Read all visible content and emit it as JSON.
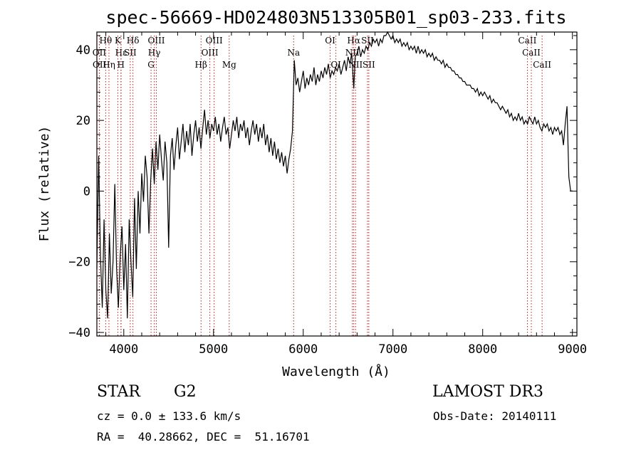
{
  "chart_data": {
    "type": "line",
    "title": "spec-56669-HD024803N513305B01_sp03-233.fits",
    "xlabel": "Wavelength (Å)",
    "ylabel": "Flux (relative)",
    "xlim": [
      3700,
      9050
    ],
    "ylim": [
      -41,
      45
    ],
    "xticks": [
      4000,
      5000,
      6000,
      7000,
      8000,
      9000
    ],
    "yticks": [
      -40,
      -20,
      0,
      20,
      40
    ],
    "series": [
      {
        "name": "spectrum",
        "points": [
          [
            3700,
            -22
          ],
          [
            3720,
            10
          ],
          [
            3740,
            -18
          ],
          [
            3760,
            -33
          ],
          [
            3780,
            -8
          ],
          [
            3800,
            -28
          ],
          [
            3820,
            -36
          ],
          [
            3840,
            -12
          ],
          [
            3860,
            -29
          ],
          [
            3880,
            -20
          ],
          [
            3900,
            2
          ],
          [
            3920,
            -22
          ],
          [
            3940,
            -33
          ],
          [
            3960,
            -18
          ],
          [
            3980,
            -10
          ],
          [
            4000,
            -28
          ],
          [
            4020,
            -15
          ],
          [
            4040,
            -36
          ],
          [
            4060,
            -8
          ],
          [
            4080,
            -20
          ],
          [
            4100,
            -30
          ],
          [
            4120,
            -2
          ],
          [
            4140,
            -22
          ],
          [
            4160,
            0
          ],
          [
            4180,
            -12
          ],
          [
            4200,
            5
          ],
          [
            4220,
            -3
          ],
          [
            4240,
            10
          ],
          [
            4260,
            4
          ],
          [
            4280,
            -12
          ],
          [
            4300,
            3
          ],
          [
            4320,
            12
          ],
          [
            4340,
            2
          ],
          [
            4360,
            14
          ],
          [
            4380,
            6
          ],
          [
            4400,
            16
          ],
          [
            4420,
            9
          ],
          [
            4440,
            3
          ],
          [
            4460,
            14
          ],
          [
            4480,
            8
          ],
          [
            4500,
            -16
          ],
          [
            4520,
            10
          ],
          [
            4540,
            15
          ],
          [
            4560,
            6
          ],
          [
            4580,
            13
          ],
          [
            4600,
            18
          ],
          [
            4620,
            9
          ],
          [
            4640,
            14
          ],
          [
            4660,
            19
          ],
          [
            4680,
            11
          ],
          [
            4700,
            17
          ],
          [
            4720,
            13
          ],
          [
            4740,
            19
          ],
          [
            4760,
            10
          ],
          [
            4780,
            16
          ],
          [
            4800,
            20
          ],
          [
            4820,
            14
          ],
          [
            4840,
            18
          ],
          [
            4860,
            12
          ],
          [
            4880,
            18
          ],
          [
            4900,
            23
          ],
          [
            4920,
            16
          ],
          [
            4940,
            20
          ],
          [
            4960,
            15
          ],
          [
            4980,
            19
          ],
          [
            5000,
            17
          ],
          [
            5020,
            21
          ],
          [
            5040,
            16
          ],
          [
            5060,
            19
          ],
          [
            5080,
            14
          ],
          [
            5100,
            18
          ],
          [
            5120,
            21
          ],
          [
            5140,
            16
          ],
          [
            5160,
            18
          ],
          [
            5180,
            12
          ],
          [
            5200,
            16
          ],
          [
            5220,
            20
          ],
          [
            5240,
            17
          ],
          [
            5260,
            21
          ],
          [
            5280,
            15
          ],
          [
            5300,
            19
          ],
          [
            5320,
            17
          ],
          [
            5340,
            20
          ],
          [
            5360,
            15
          ],
          [
            5380,
            18
          ],
          [
            5400,
            13
          ],
          [
            5420,
            17
          ],
          [
            5440,
            20
          ],
          [
            5460,
            16
          ],
          [
            5480,
            19
          ],
          [
            5500,
            14
          ],
          [
            5520,
            18
          ],
          [
            5540,
            15
          ],
          [
            5560,
            19
          ],
          [
            5580,
            13
          ],
          [
            5600,
            16
          ],
          [
            5620,
            11
          ],
          [
            5640,
            15
          ],
          [
            5660,
            10
          ],
          [
            5680,
            14
          ],
          [
            5700,
            9
          ],
          [
            5720,
            12
          ],
          [
            5740,
            8
          ],
          [
            5760,
            11
          ],
          [
            5780,
            7
          ],
          [
            5800,
            10
          ],
          [
            5820,
            5
          ],
          [
            5840,
            9
          ],
          [
            5860,
            12
          ],
          [
            5880,
            17
          ],
          [
            5890,
            27
          ],
          [
            5900,
            37
          ],
          [
            5920,
            30
          ],
          [
            5940,
            32
          ],
          [
            5960,
            28
          ],
          [
            5980,
            31
          ],
          [
            6000,
            34
          ],
          [
            6020,
            29
          ],
          [
            6040,
            32
          ],
          [
            6060,
            30
          ],
          [
            6080,
            33
          ],
          [
            6100,
            31
          ],
          [
            6120,
            35
          ],
          [
            6140,
            30
          ],
          [
            6160,
            33
          ],
          [
            6180,
            31
          ],
          [
            6200,
            34
          ],
          [
            6220,
            32
          ],
          [
            6240,
            35
          ],
          [
            6260,
            33
          ],
          [
            6280,
            36
          ],
          [
            6300,
            32
          ],
          [
            6320,
            34
          ],
          [
            6340,
            33
          ],
          [
            6360,
            35
          ],
          [
            6380,
            34
          ],
          [
            6400,
            36
          ],
          [
            6420,
            33
          ],
          [
            6440,
            35
          ],
          [
            6460,
            37
          ],
          [
            6480,
            34
          ],
          [
            6500,
            38
          ],
          [
            6520,
            36
          ],
          [
            6540,
            39
          ],
          [
            6563,
            29
          ],
          [
            6580,
            38
          ],
          [
            6600,
            39
          ],
          [
            6620,
            41
          ],
          [
            6640,
            38
          ],
          [
            6660,
            40
          ],
          [
            6680,
            39
          ],
          [
            6700,
            41
          ],
          [
            6720,
            40
          ],
          [
            6740,
            42
          ],
          [
            6760,
            41
          ],
          [
            6780,
            43
          ],
          [
            6800,
            42
          ],
          [
            6820,
            43
          ],
          [
            6840,
            41
          ],
          [
            6860,
            43
          ],
          [
            6880,
            42
          ],
          [
            6900,
            44
          ],
          [
            6920,
            44
          ],
          [
            6940,
            45
          ],
          [
            6960,
            44
          ],
          [
            6980,
            43
          ],
          [
            7000,
            44
          ],
          [
            7020,
            42
          ],
          [
            7040,
            43
          ],
          [
            7060,
            42
          ],
          [
            7080,
            43
          ],
          [
            7100,
            41
          ],
          [
            7120,
            42
          ],
          [
            7140,
            41
          ],
          [
            7160,
            42
          ],
          [
            7180,
            40
          ],
          [
            7200,
            41
          ],
          [
            7220,
            40
          ],
          [
            7240,
            41
          ],
          [
            7260,
            39
          ],
          [
            7280,
            41
          ],
          [
            7300,
            39
          ],
          [
            7320,
            40
          ],
          [
            7340,
            39
          ],
          [
            7360,
            40
          ],
          [
            7380,
            38
          ],
          [
            7400,
            39
          ],
          [
            7420,
            38
          ],
          [
            7440,
            39
          ],
          [
            7460,
            37
          ],
          [
            7480,
            38
          ],
          [
            7500,
            37
          ],
          [
            7520,
            37
          ],
          [
            7540,
            36
          ],
          [
            7560,
            37
          ],
          [
            7580,
            35
          ],
          [
            7600,
            36
          ],
          [
            7620,
            35
          ],
          [
            7640,
            35
          ],
          [
            7660,
            34
          ],
          [
            7680,
            34
          ],
          [
            7700,
            33
          ],
          [
            7720,
            33
          ],
          [
            7740,
            32
          ],
          [
            7760,
            32
          ],
          [
            7780,
            31
          ],
          [
            7800,
            31
          ],
          [
            7820,
            30
          ],
          [
            7840,
            30
          ],
          [
            7860,
            30
          ],
          [
            7880,
            29
          ],
          [
            7900,
            29
          ],
          [
            7920,
            28
          ],
          [
            7940,
            29
          ],
          [
            7960,
            27
          ],
          [
            7980,
            28
          ],
          [
            8000,
            27
          ],
          [
            8020,
            28
          ],
          [
            8040,
            27
          ],
          [
            8060,
            26
          ],
          [
            8080,
            27
          ],
          [
            8100,
            25
          ],
          [
            8120,
            26
          ],
          [
            8140,
            25
          ],
          [
            8160,
            25
          ],
          [
            8180,
            24
          ],
          [
            8200,
            23
          ],
          [
            8220,
            24
          ],
          [
            8240,
            23
          ],
          [
            8260,
            22
          ],
          [
            8280,
            23
          ],
          [
            8300,
            21
          ],
          [
            8320,
            22
          ],
          [
            8340,
            20
          ],
          [
            8360,
            21
          ],
          [
            8380,
            20
          ],
          [
            8400,
            22
          ],
          [
            8420,
            20
          ],
          [
            8440,
            21
          ],
          [
            8460,
            19
          ],
          [
            8480,
            20
          ],
          [
            8500,
            19
          ],
          [
            8520,
            21
          ],
          [
            8540,
            20
          ],
          [
            8560,
            19
          ],
          [
            8580,
            21
          ],
          [
            8600,
            19
          ],
          [
            8620,
            20
          ],
          [
            8640,
            18
          ],
          [
            8660,
            17
          ],
          [
            8680,
            19
          ],
          [
            8700,
            18
          ],
          [
            8720,
            19
          ],
          [
            8740,
            17
          ],
          [
            8760,
            18
          ],
          [
            8780,
            16
          ],
          [
            8800,
            18
          ],
          [
            8820,
            17
          ],
          [
            8840,
            18
          ],
          [
            8860,
            16
          ],
          [
            8880,
            17
          ],
          [
            8900,
            13
          ],
          [
            8920,
            19
          ],
          [
            8940,
            24
          ],
          [
            8960,
            4
          ],
          [
            8980,
            0
          ],
          [
            9000,
            0
          ]
        ]
      }
    ],
    "annotations": [
      {
        "label": "Hδ",
        "x": 4102
      },
      {
        "label": "K",
        "x": 3934
      },
      {
        "label": "Hε",
        "x": 3970
      },
      {
        "label": "H",
        "x": 3968
      },
      {
        "label": "Hθ",
        "x": 3798
      },
      {
        "label": "OII",
        "x": 3727
      },
      {
        "label": "Hη",
        "x": 3835
      },
      {
        "label": "OII",
        "x": 3729
      },
      {
        "label": "SII",
        "x": 4072
      },
      {
        "label": "OIII",
        "x": 4363
      },
      {
        "label": "Hγ",
        "x": 4340
      },
      {
        "label": "G",
        "x": 4304
      },
      {
        "label": "Hβ",
        "x": 4861
      },
      {
        "label": "OIII",
        "x": 5007
      },
      {
        "label": "OIII",
        "x": 4959
      },
      {
        "label": "Mg",
        "x": 5175
      },
      {
        "label": "Na",
        "x": 5893
      },
      {
        "label": "OI",
        "x": 6300
      },
      {
        "label": "OI",
        "x": 6364
      },
      {
        "label": "Hα",
        "x": 6563
      },
      {
        "label": "SII",
        "x": 6716
      },
      {
        "label": "NII",
        "x": 6548
      },
      {
        "label": "NII",
        "x": 6583
      },
      {
        "label": "SII",
        "x": 6731
      },
      {
        "label": "CaII",
        "x": 8498
      },
      {
        "label": "CaII",
        "x": 8542
      },
      {
        "label": "CaII",
        "x": 8662
      }
    ]
  },
  "info": {
    "object_class": "STAR",
    "subclass": "G2",
    "survey": "LAMOST DR3",
    "redshift": "cz = 0.0 ± 133.6 km/s",
    "obs_date": "Obs-Date: 20140111",
    "coords": "RA =  40.28662, DEC =  51.16701"
  },
  "colors": {
    "line_marker": "#b22222",
    "spectrum": "#000000"
  }
}
